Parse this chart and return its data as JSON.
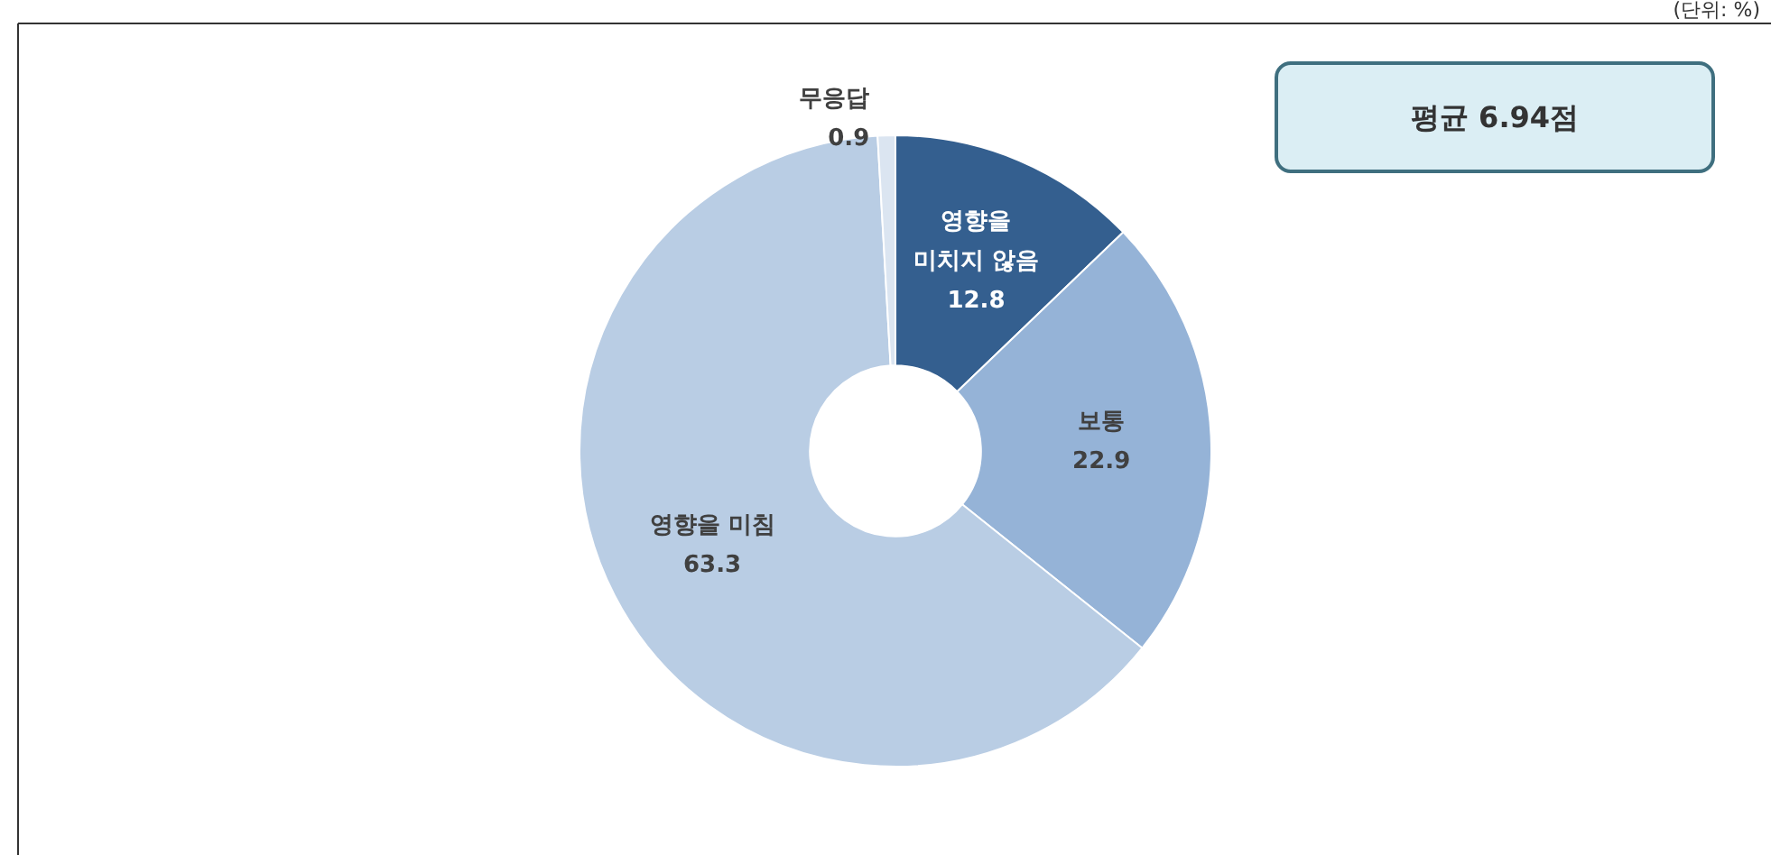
{
  "chart_data": {
    "type": "donut",
    "categories": [
      "영향을\n미치지 않음",
      "보통",
      "영향을 미침",
      "무응답"
    ],
    "values": [
      12.8,
      22.9,
      63.3,
      0.9
    ],
    "colors": [
      "#345f8f",
      "#95b3d7",
      "#b9cde4",
      "#dbe5f1"
    ],
    "data_labels": true,
    "legend": false,
    "annotations": [
      "평균 6.94점",
      "(단위: %)"
    ]
  }
}
